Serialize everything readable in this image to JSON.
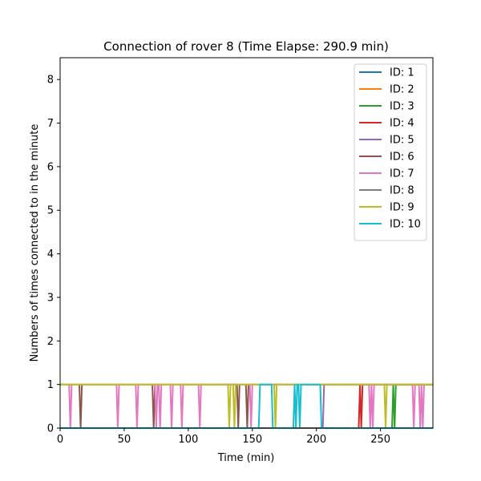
{
  "chart_data": {
    "type": "line",
    "title": "Connection of rover 8 (Time Elapse: 290.9 min)",
    "xlabel": "Time (min)",
    "ylabel": "Numbers of times connected to in the minute",
    "xlim": [
      0,
      290.9
    ],
    "ylim": [
      0,
      8.5
    ],
    "xticks": [
      0,
      50,
      100,
      150,
      200,
      250
    ],
    "yticks": [
      0,
      1,
      2,
      3,
      4,
      5,
      6,
      7,
      8
    ],
    "grid": false,
    "legend_position": "top-right",
    "series": [
      {
        "name": "ID: 1",
        "color": "#1f77b4",
        "points": [
          [
            0,
            0
          ],
          [
            290.9,
            0
          ]
        ]
      },
      {
        "name": "ID: 2",
        "color": "#ff7f0e",
        "points": [
          [
            0,
            0
          ],
          [
            290.9,
            0
          ]
        ]
      },
      {
        "name": "ID: 3",
        "color": "#2ca02c",
        "points": [
          [
            0,
            0
          ],
          [
            259,
            0
          ],
          [
            260,
            1
          ],
          [
            261,
            0
          ],
          [
            262,
            1
          ],
          [
            263,
            1
          ],
          [
            290.9,
            1
          ]
        ]
      },
      {
        "name": "ID: 4",
        "color": "#d62728",
        "points": [
          [
            0,
            0
          ],
          [
            233,
            0
          ],
          [
            234,
            1
          ],
          [
            235,
            0
          ],
          [
            236,
            1
          ],
          [
            237,
            1
          ],
          [
            290.9,
            1
          ]
        ]
      },
      {
        "name": "ID: 5",
        "color": "#9467bd",
        "points": [
          [
            0,
            0
          ],
          [
            205,
            0
          ],
          [
            206,
            1
          ],
          [
            290.9,
            1
          ]
        ]
      },
      {
        "name": "ID: 6",
        "color": "#8c564b",
        "points": [
          [
            0,
            1
          ],
          [
            15,
            1
          ],
          [
            16,
            0
          ],
          [
            17,
            1
          ],
          [
            72,
            1
          ],
          [
            73,
            0
          ],
          [
            74,
            1
          ],
          [
            138,
            1
          ],
          [
            139,
            0
          ],
          [
            140,
            1
          ],
          [
            145,
            1
          ],
          [
            146,
            0
          ],
          [
            147,
            1
          ],
          [
            290.9,
            1
          ]
        ]
      },
      {
        "name": "ID: 7",
        "color": "#e377c2",
        "points": [
          [
            0,
            1
          ],
          [
            7,
            1
          ],
          [
            8,
            0
          ],
          [
            9,
            1
          ],
          [
            44,
            1
          ],
          [
            45,
            0
          ],
          [
            46,
            1
          ],
          [
            59,
            1
          ],
          [
            60,
            0
          ],
          [
            61,
            1
          ],
          [
            74,
            1
          ],
          [
            75,
            0
          ],
          [
            76,
            1
          ],
          [
            77,
            1
          ],
          [
            78,
            0
          ],
          [
            79,
            1
          ],
          [
            86,
            1
          ],
          [
            87,
            0
          ],
          [
            88,
            1
          ],
          [
            94,
            1
          ],
          [
            95,
            0
          ],
          [
            96,
            1
          ],
          [
            108,
            1
          ],
          [
            109,
            0
          ],
          [
            110,
            1
          ],
          [
            148,
            1
          ],
          [
            149,
            0
          ],
          [
            150,
            1
          ],
          [
            241,
            1
          ],
          [
            242,
            0
          ],
          [
            243,
            1
          ],
          [
            244,
            0
          ],
          [
            245,
            1
          ],
          [
            275,
            1
          ],
          [
            276,
            0
          ],
          [
            277,
            1
          ],
          [
            280,
            1
          ],
          [
            281,
            0
          ],
          [
            282,
            1
          ],
          [
            283,
            0
          ],
          [
            284,
            1
          ],
          [
            290.9,
            1
          ]
        ]
      },
      {
        "name": "ID: 8",
        "color": "#7f7f7f",
        "points": [
          [
            0,
            0
          ],
          [
            290.9,
            0
          ]
        ]
      },
      {
        "name": "ID: 9",
        "color": "#bcbd22",
        "points": [
          [
            0,
            1
          ],
          [
            131,
            1
          ],
          [
            132,
            0
          ],
          [
            133,
            1
          ],
          [
            135,
            1
          ],
          [
            136,
            0
          ],
          [
            137,
            1
          ],
          [
            167,
            1
          ],
          [
            168,
            0
          ],
          [
            169,
            1
          ],
          [
            253,
            1
          ],
          [
            254,
            0
          ],
          [
            255,
            1
          ],
          [
            290.9,
            1
          ]
        ]
      },
      {
        "name": "ID: 10",
        "color": "#17becf",
        "points": [
          [
            0,
            0
          ],
          [
            155,
            0
          ],
          [
            156,
            1
          ],
          [
            165,
            1
          ],
          [
            166,
            0
          ],
          [
            182,
            0
          ],
          [
            183,
            1
          ],
          [
            184,
            0
          ],
          [
            185,
            1
          ],
          [
            186,
            1
          ],
          [
            187,
            0
          ],
          [
            188,
            1
          ],
          [
            203,
            1
          ],
          [
            204,
            0
          ],
          [
            290.9,
            0
          ]
        ]
      }
    ]
  }
}
